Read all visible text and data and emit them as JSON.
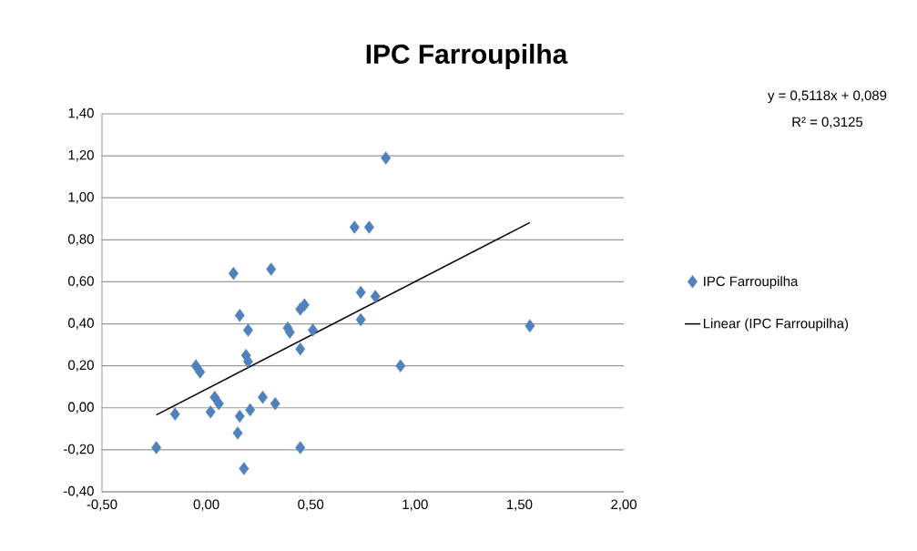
{
  "chart_data": {
    "type": "scatter",
    "title": "IPC Farroupilha",
    "x": [
      -0.24,
      -0.15,
      -0.05,
      -0.03,
      0.02,
      0.04,
      0.06,
      0.13,
      0.16,
      0.15,
      0.16,
      0.18,
      0.19,
      0.2,
      0.2,
      0.21,
      0.27,
      0.33,
      0.31,
      0.39,
      0.4,
      0.51,
      0.45,
      0.47,
      0.45,
      0.45,
      0.71,
      0.78,
      0.74,
      0.81,
      0.74,
      0.93,
      0.86,
      1.55
    ],
    "series": [
      {
        "name": "IPC Farroupilha",
        "marker": "diamond",
        "color": "#4f81bd",
        "values": [
          -0.19,
          -0.03,
          0.2,
          0.17,
          -0.02,
          0.05,
          0.02,
          0.64,
          0.44,
          -0.12,
          -0.04,
          -0.29,
          0.25,
          0.22,
          0.37,
          -0.01,
          0.05,
          0.02,
          0.66,
          0.38,
          0.36,
          0.37,
          0.47,
          0.49,
          0.28,
          -0.19,
          0.86,
          0.86,
          0.55,
          0.53,
          0.42,
          0.2,
          1.19,
          0.39
        ]
      },
      {
        "name": "Linear (IPC Farroupilha)",
        "type": "line",
        "marker": "none",
        "line_style": "solid",
        "color": "#000000",
        "x": [
          -0.24,
          1.55
        ],
        "values": [
          -0.034,
          0.882
        ]
      }
    ],
    "xlim": [
      -0.5,
      2.0
    ],
    "ylim": [
      -0.4,
      1.4
    ],
    "xticks": [
      {
        "value": -0.5,
        "label": "-0,50"
      },
      {
        "value": 0,
        "label": "0,00"
      },
      {
        "value": 0.5,
        "label": "0,50"
      },
      {
        "value": 1.0,
        "label": "1,00"
      },
      {
        "value": 1.5,
        "label": "1,50"
      },
      {
        "value": 2.0,
        "label": "2,00"
      }
    ],
    "yticks": [
      {
        "value": -0.4,
        "label": "-0,40"
      },
      {
        "value": -0.2,
        "label": "-0,20"
      },
      {
        "value": 0,
        "label": "0,00"
      },
      {
        "value": 0.2,
        "label": "0,20"
      },
      {
        "value": 0.4,
        "label": "0,40"
      },
      {
        "value": 0.6,
        "label": "0,60"
      },
      {
        "value": 0.8,
        "label": "0,80"
      },
      {
        "value": 1.0,
        "label": "1,00"
      },
      {
        "value": 1.2,
        "label": "1,20"
      },
      {
        "value": 1.4,
        "label": "1,40"
      }
    ],
    "grid": "y",
    "legend": "right",
    "annotations": [
      "y = 0,5118x + 0,089",
      "R² = 0,3125"
    ]
  }
}
